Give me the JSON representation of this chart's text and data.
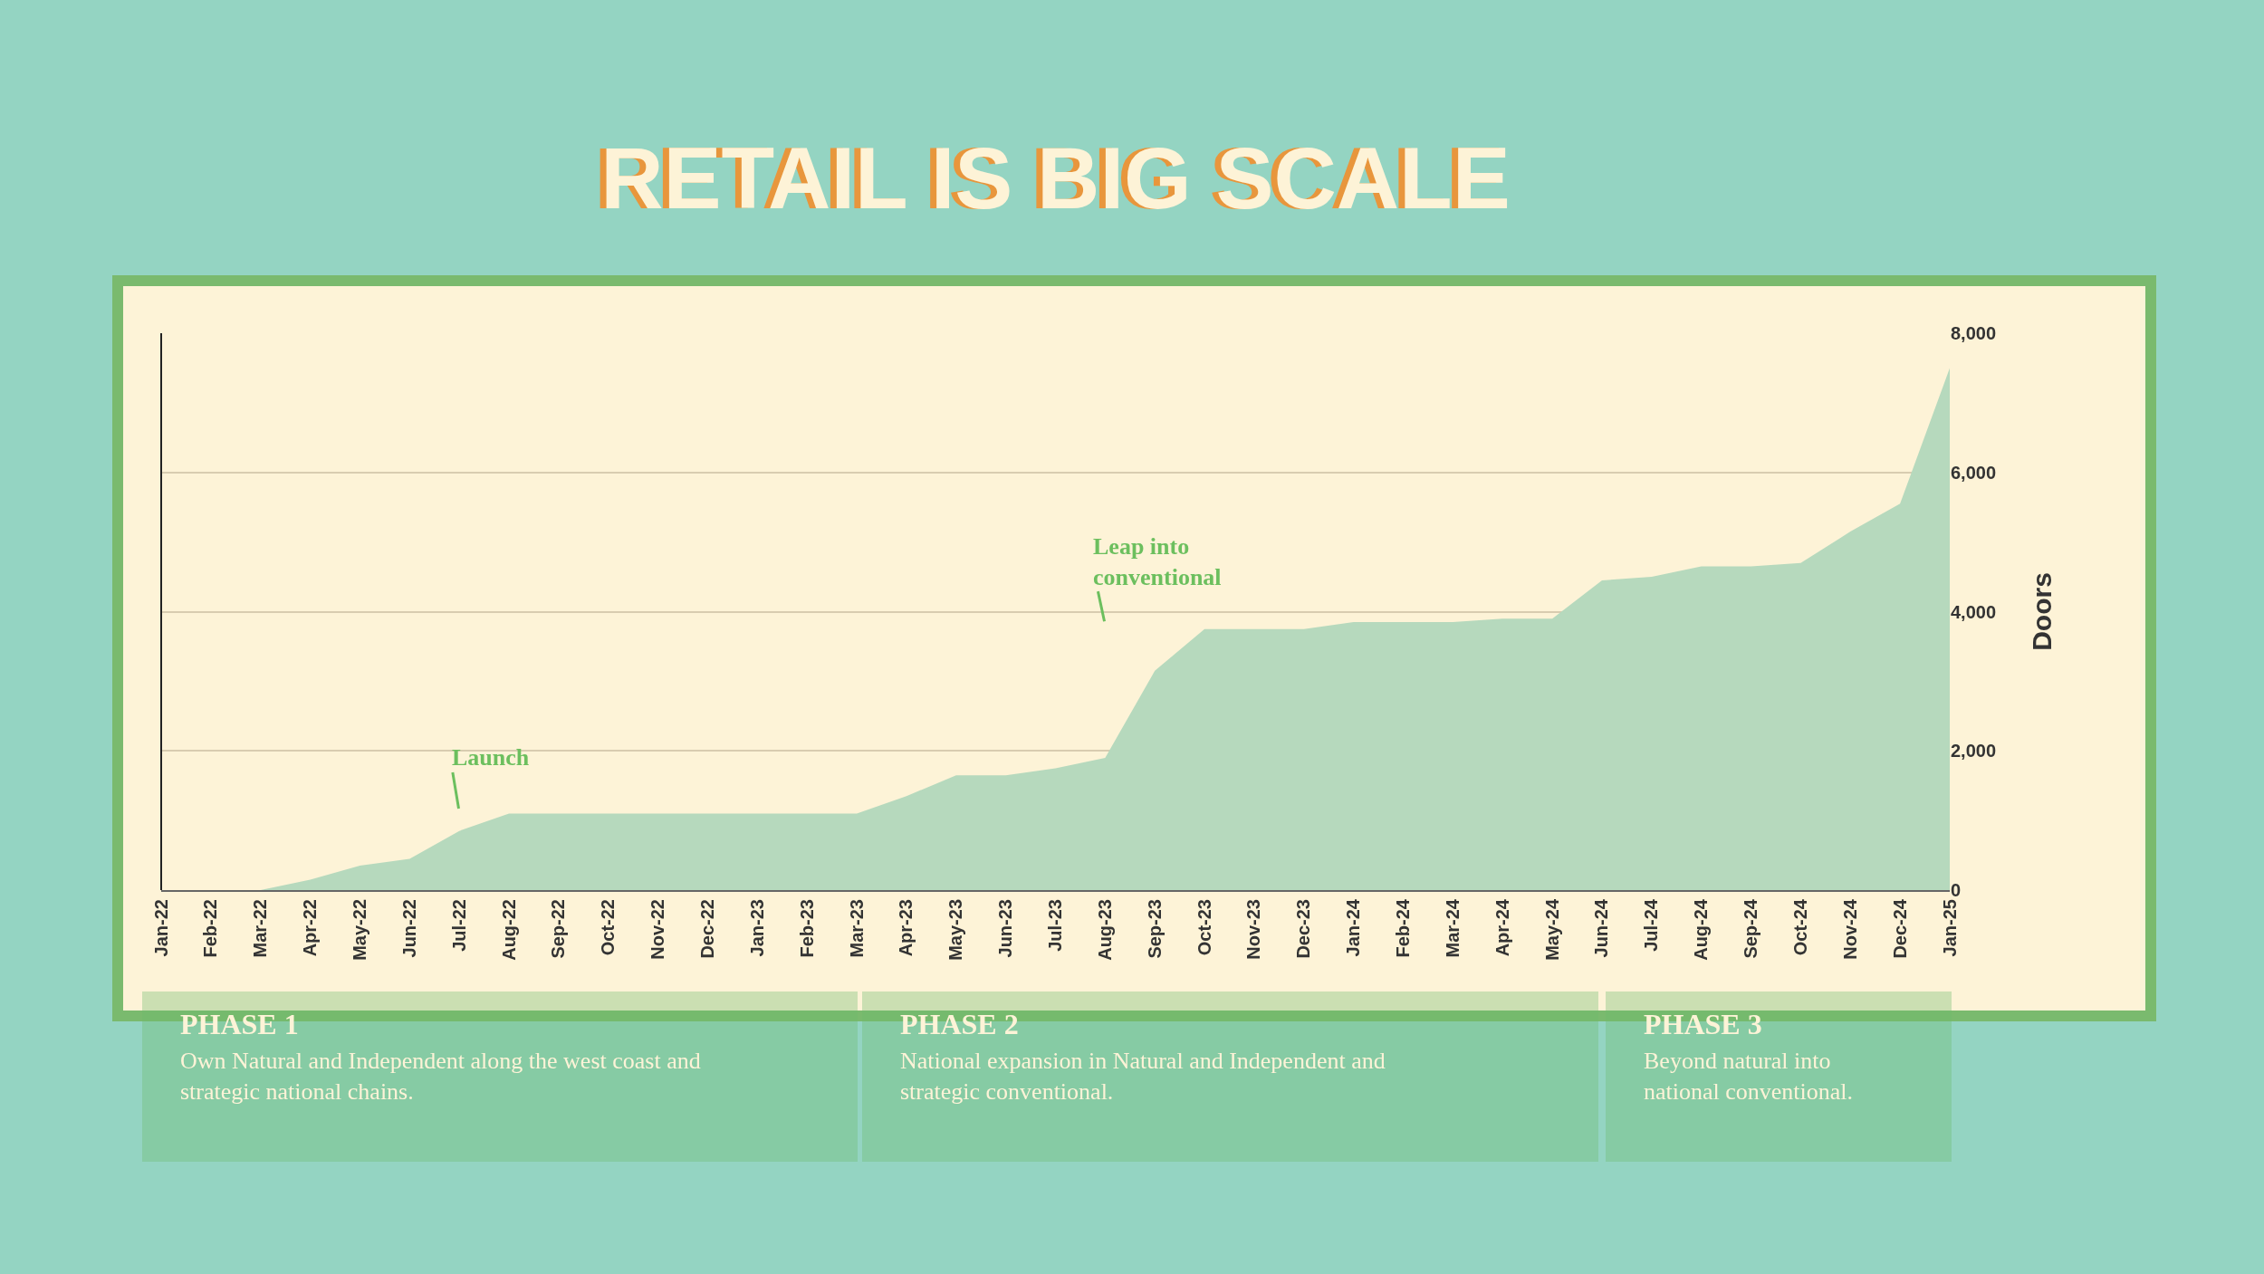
{
  "chart_data": {
    "type": "area",
    "title": "RETAIL IS BIG SCALE",
    "ylabel": "Doors",
    "categories": [
      "Jan-22",
      "Feb-22",
      "Mar-22",
      "Apr-22",
      "May-22",
      "Jun-22",
      "Jul-22",
      "Aug-22",
      "Sep-22",
      "Oct-22",
      "Nov-22",
      "Dec-22",
      "Jan-23",
      "Feb-23",
      "Mar-23",
      "Apr-23",
      "May-23",
      "Jun-23",
      "Jul-23",
      "Aug-23",
      "Sep-23",
      "Oct-23",
      "Nov-23",
      "Dec-23",
      "Jan-24",
      "Feb-24",
      "Mar-24",
      "Apr-24",
      "May-24",
      "Jun-24",
      "Jul-24",
      "Aug-24",
      "Sep-24",
      "Oct-24",
      "Nov-24",
      "Dec-24",
      "Jan-25"
    ],
    "values": [
      0,
      0,
      0,
      150,
      350,
      450,
      850,
      1100,
      1100,
      1100,
      1100,
      1100,
      1100,
      1100,
      1100,
      1350,
      1650,
      1650,
      1750,
      1900,
      3150,
      3750,
      3750,
      3750,
      3850,
      3850,
      3850,
      3900,
      3900,
      4450,
      4500,
      4650,
      4650,
      4700,
      5150,
      5550,
      7500
    ],
    "color": "#b6d9bd",
    "ylim": [
      0,
      8000
    ],
    "yticks": [
      0,
      {
        "value": 2000,
        "label": "2,000"
      },
      {
        "value": 4000,
        "label": "4,000"
      },
      {
        "value": 6000,
        "label": "6,000"
      },
      {
        "value": 8000,
        "label": "8,000"
      }
    ],
    "grid": "y",
    "annotations": [
      "Launch",
      "Leap into conventional",
      "PHASE 1",
      "Own Natural and Independent along the west coast and strategic national chains.",
      "PHASE 2",
      "National expansion in Natural and Independent and strategic conventional.",
      "PHASE 3",
      "Beyond natural into national conventional."
    ]
  }
}
